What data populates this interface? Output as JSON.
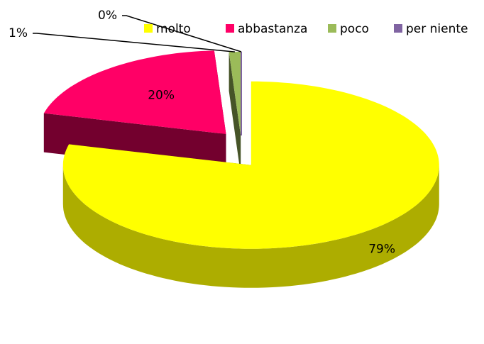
{
  "chart_data": {
    "type": "pie",
    "categories": [
      "molto",
      "abbastanza",
      "poco",
      "per niente"
    ],
    "values": [
      79,
      20,
      1,
      0
    ],
    "value_labels": [
      "79%",
      "20%",
      "1%",
      "0%"
    ],
    "colors": [
      "#ffff00",
      "#ff0066",
      "#9bbb59",
      "#8064a2"
    ],
    "legend": "top",
    "three_d": true,
    "exploded": true
  }
}
